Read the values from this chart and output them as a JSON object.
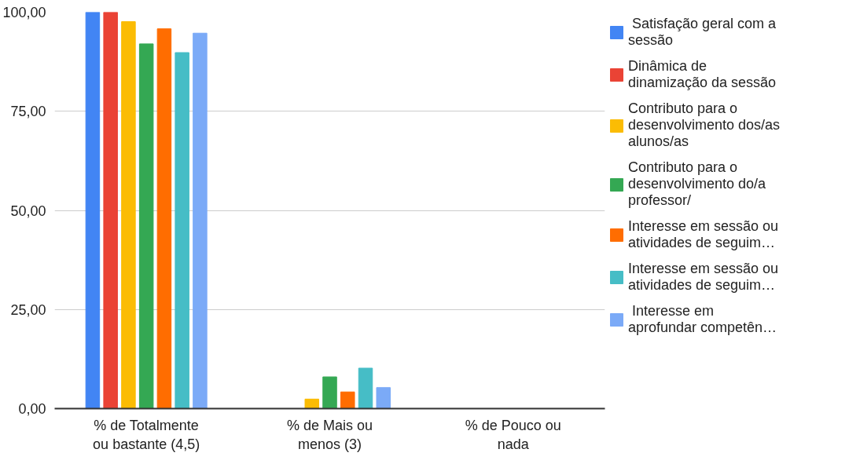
{
  "chart_data": {
    "type": "bar",
    "categories": [
      "% de Totalmente\nou bastante (4,5)",
      "% de Mais ou\nmenos (3)",
      "% de Pouco ou\nnada"
    ],
    "series": [
      {
        "name": " Satisfação geral com a\nsessão",
        "color": "#4285f4",
        "values": [
          100,
          0,
          0
        ]
      },
      {
        "name": "Dinâmica de\ndinamização da sessão",
        "color": "#ea4335",
        "values": [
          100,
          0,
          0
        ]
      },
      {
        "name": "Contributo para o\ndesenvolvimento dos/as\nalunos/as",
        "color": "#fbbc04",
        "values": [
          97.6,
          2.4,
          0
        ]
      },
      {
        "name": "Contributo para o\ndesenvolvimento do/a\nprofessor/",
        "color": "#34a853",
        "values": [
          92,
          8,
          0
        ]
      },
      {
        "name": "Interesse em sessão ou\natividades de seguim…",
        "color": "#ff6d01",
        "values": [
          95.8,
          4.2,
          0
        ]
      },
      {
        "name": "Interesse em sessão ou\natividades de seguim…",
        "color": "#46bdc6",
        "values": [
          89.8,
          10.2,
          0
        ]
      },
      {
        "name": " Interesse em\naprofundar competên…",
        "color": "#7baaf7",
        "values": [
          94.7,
          5.3,
          0
        ]
      }
    ],
    "ylim": [
      0,
      100
    ],
    "yticks": [
      {
        "value": 0,
        "label": "0,00"
      },
      {
        "value": 25,
        "label": "25,00"
      },
      {
        "value": 50,
        "label": "50,00"
      },
      {
        "value": 75,
        "label": "75,00"
      },
      {
        "value": 100,
        "label": "100,00"
      }
    ],
    "grid": "y",
    "legend": "right"
  }
}
